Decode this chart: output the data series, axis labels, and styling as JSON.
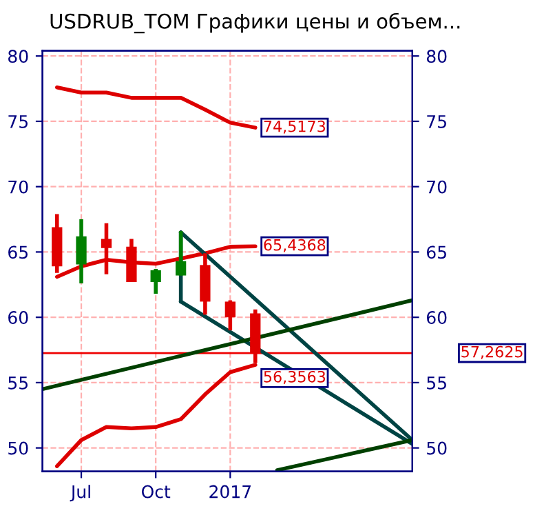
{
  "chart_data": {
    "type": "candlestick",
    "title": "USDRUB_TOM Графики цены и объем...",
    "x": [
      "2016-06-01",
      "2016-07-01",
      "2016-08-01",
      "2016-09-01",
      "2016-10-01",
      "2016-11-01",
      "2016-12-01",
      "2017-01-01",
      "2017-02-01"
    ],
    "ohlc": [
      [
        66.9,
        67.9,
        63.4,
        63.9
      ],
      [
        64.05,
        67.5,
        62.6,
        66.2
      ],
      [
        66.0,
        67.2,
        63.3,
        65.3
      ],
      [
        65.4,
        66.0,
        62.7,
        62.7
      ],
      [
        62.7,
        63.7,
        61.8,
        63.6
      ],
      [
        63.2,
        66.6,
        63.2,
        64.3
      ],
      [
        64.0,
        64.9,
        60.2,
        61.2
      ],
      [
        61.2,
        61.3,
        59.0,
        60.0
      ],
      [
        60.3,
        60.6,
        56.5,
        57.2625
      ]
    ],
    "colors": [
      "#e00000",
      "#008000",
      "#e00000",
      "#e00000",
      "#008000",
      "#008000",
      "#e00000",
      "#e00000",
      "#e00000"
    ],
    "series": [
      {
        "type": "line",
        "color": "#dd0000",
        "x": [
          "2016-06-01",
          "2016-07-01",
          "2016-08-01",
          "2016-09-01",
          "2016-10-01",
          "2016-11-01",
          "2016-12-01",
          "2017-01-01",
          "2017-02-01"
        ],
        "values": [
          77.6,
          77.2,
          77.2,
          76.8,
          76.8,
          76.8,
          75.9,
          74.9,
          74.5173
        ],
        "value_labels": [
          null,
          null,
          null,
          null,
          null,
          null,
          null,
          null,
          "74,5173"
        ]
      },
      {
        "type": "line",
        "color": "#dd0000",
        "x": [
          "2016-06-01",
          "2016-07-01",
          "2016-08-01",
          "2016-09-01",
          "2016-10-01",
          "2016-11-01",
          "2016-12-01",
          "2017-01-01",
          "2017-02-01"
        ],
        "values": [
          63.1,
          63.9,
          64.4,
          64.2,
          64.1,
          64.5,
          64.9,
          65.4,
          65.4368
        ],
        "value_labels": [
          null,
          null,
          null,
          null,
          null,
          null,
          null,
          null,
          "65,4368"
        ]
      },
      {
        "type": "line",
        "color": "#dd0000",
        "x": [
          "2016-06-01",
          "2016-07-01",
          "2016-08-01",
          "2016-09-01",
          "2016-10-01",
          "2016-11-01",
          "2016-12-01",
          "2017-01-01",
          "2017-02-01"
        ],
        "values": [
          48.6,
          50.6,
          51.6,
          51.5,
          51.6,
          52.2,
          54.1,
          55.8,
          56.3563
        ],
        "value_labels": [
          null,
          null,
          null,
          null,
          null,
          null,
          null,
          null,
          "56,3563"
        ]
      },
      {
        "type": "line",
        "color": "#004444",
        "x": [
          "2016-11-01",
          "2017-08-14"
        ],
        "values": [
          66.5,
          50.6
        ]
      },
      {
        "type": "line",
        "color": "#004444",
        "x": [
          "2016-11-01",
          "2017-08-14"
        ],
        "values": [
          61.2,
          50.3
        ]
      },
      {
        "type": "line",
        "color": "#004444",
        "x": [
          "2016-11-01",
          "2016-11-01"
        ],
        "values": [
          66.5,
          61.2
        ]
      },
      {
        "type": "line",
        "color": "#004000",
        "x": [
          "2016-05-14",
          "2017-08-14"
        ],
        "values": [
          54.5,
          61.3
        ]
      },
      {
        "type": "line",
        "color": "#004000",
        "x": [
          "2017-02-28",
          "2017-08-14"
        ],
        "values": [
          48.3,
          50.6
        ]
      }
    ],
    "ref_lines": [
      {
        "axis": "y",
        "value": 57.2625,
        "label": "57,2625",
        "color": "#ee0000"
      }
    ],
    "xlim": [
      "2016-05-14",
      "2017-08-14"
    ],
    "xticks": [
      {
        "value": "2016-07-01",
        "label": "Jul"
      },
      {
        "value": "2016-10-01",
        "label": "Oct"
      },
      {
        "value": "2017-01-01",
        "label": "2017"
      }
    ],
    "ylim": [
      48.2,
      80.4
    ],
    "yticks": [
      50,
      55,
      60,
      65,
      70,
      75,
      80
    ],
    "y2lim": [
      48.2,
      80.4
    ],
    "y2ticks": [
      50,
      55,
      60,
      65,
      70,
      75,
      80
    ],
    "grid": true,
    "legend": false
  }
}
